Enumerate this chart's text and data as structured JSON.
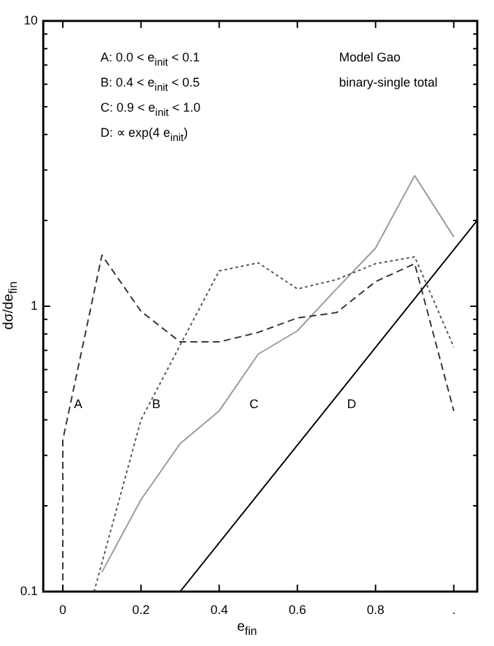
{
  "chart_data": {
    "type": "line",
    "title": "Model Gao",
    "subtitle": "binary-single total",
    "xlabel": "e$_{fin}$",
    "ylabel": "dσ/de$_{fin}$",
    "annotations": [
      "A: 0.0 < e$_{init}$ < 0.1",
      "B: 0.4 < e$_{init}$ < 0.5",
      "C: 0.9 < e$_{init}$ < 1.0",
      "D: ∝ exp(4 e$_{init}$)"
    ],
    "log": "y",
    "grid": false,
    "legend": false,
    "marker": "none",
    "xlim": [
      -0.05,
      1.06
    ],
    "ylim": [
      0.1,
      10
    ],
    "xticks": [
      0,
      0.2,
      0.4,
      0.6,
      0.8,
      {
        "value": 1,
        "label": "."
      }
    ],
    "yticks": [
      0.1,
      {
        "value": 0.2,
        "label": null
      },
      {
        "value": 0.3,
        "label": null
      },
      {
        "value": 0.4,
        "label": null
      },
      {
        "value": 0.5,
        "label": null
      },
      {
        "value": 0.6,
        "label": null
      },
      {
        "value": 0.7,
        "label": null
      },
      {
        "value": 0.8,
        "label": null
      },
      {
        "value": 0.9,
        "label": null
      },
      1,
      {
        "value": 2,
        "label": null
      },
      {
        "value": 3,
        "label": null
      },
      {
        "value": 4,
        "label": null
      },
      {
        "value": 5,
        "label": null
      },
      {
        "value": 6,
        "label": null
      },
      {
        "value": 7,
        "label": null
      },
      {
        "value": 8,
        "label": null
      },
      {
        "value": 9,
        "label": null
      },
      10
    ],
    "series": [
      {
        "name": "A",
        "color": "#333333",
        "line_style": "dashed",
        "x": [
          0,
          0,
          0.1,
          0.2,
          0.3,
          0.4,
          0.5,
          0.6,
          0.7,
          0.8,
          0.9,
          1.0
        ],
        "values": [
          0.1,
          0.34,
          1.51,
          0.96,
          0.75,
          0.75,
          0.81,
          0.91,
          0.95,
          1.22,
          1.41,
          0.43
        ]
      },
      {
        "name": "B",
        "color": "#555555",
        "line_style": "dotted",
        "x": [
          0.08,
          0.2,
          0.3,
          0.4,
          0.5,
          0.6,
          0.7,
          0.8,
          0.9,
          1.0
        ],
        "values": [
          0.1,
          0.4,
          0.73,
          1.33,
          1.42,
          1.15,
          1.24,
          1.41,
          1.49,
          0.72
        ]
      },
      {
        "name": "C",
        "color": "#999999",
        "line_style": "solid",
        "x": [
          0.1,
          0.2,
          0.3,
          0.4,
          0.5,
          0.6,
          0.7,
          0.8,
          0.9,
          1.0
        ],
        "values": [
          0.117,
          0.21,
          0.33,
          0.43,
          0.68,
          0.82,
          1.15,
          1.6,
          2.87,
          1.75
        ]
      },
      {
        "name": "D",
        "color": "#000000",
        "line_style": "solid",
        "x": [
          0.3,
          1.06
        ],
        "values": [
          0.1,
          2.0
        ]
      }
    ]
  }
}
